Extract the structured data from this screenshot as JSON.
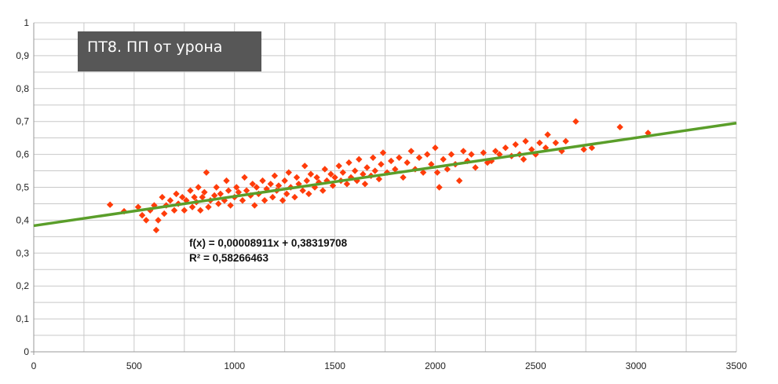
{
  "title": "ПТ8. ПП от урона",
  "chart_data": {
    "type": "scatter",
    "title": "ПТ8. ПП от урона",
    "xlabel": "",
    "ylabel": "",
    "xlim": [
      0,
      3500
    ],
    "ylim": [
      0,
      1
    ],
    "x_ticks": [
      "0",
      "500",
      "1000",
      "1500",
      "2000",
      "2500",
      "3000",
      "3500"
    ],
    "x_tick_values": [
      0,
      500,
      1000,
      1500,
      2000,
      2500,
      3000,
      3500
    ],
    "y_ticks": [
      "0",
      "0,1",
      "0,2",
      "0,3",
      "0,4",
      "0,5",
      "0,6",
      "0,7",
      "0,8",
      "0,9",
      "1"
    ],
    "y_tick_values": [
      0,
      0.1,
      0.2,
      0.3,
      0.4,
      0.5,
      0.6,
      0.7,
      0.8,
      0.9,
      1
    ],
    "grid": true,
    "point_color": "#ff3c0a",
    "trendline_color": "#5a9e2a",
    "trendline": {
      "slope": 8.911e-05,
      "intercept": 0.38319708,
      "equation": "f(x) = 0,00008911x + 0,38319708",
      "r_squared": "R² = 0,58266463"
    },
    "series": [
      {
        "marker": "diamond",
        "points": [
          [
            380,
            0.447
          ],
          [
            450,
            0.427
          ],
          [
            520,
            0.44
          ],
          [
            540,
            0.415
          ],
          [
            560,
            0.4
          ],
          [
            580,
            0.43
          ],
          [
            600,
            0.445
          ],
          [
            610,
            0.37
          ],
          [
            620,
            0.4
          ],
          [
            640,
            0.47
          ],
          [
            650,
            0.42
          ],
          [
            660,
            0.445
          ],
          [
            680,
            0.46
          ],
          [
            700,
            0.43
          ],
          [
            710,
            0.48
          ],
          [
            720,
            0.45
          ],
          [
            740,
            0.47
          ],
          [
            750,
            0.43
          ],
          [
            760,
            0.46
          ],
          [
            780,
            0.49
          ],
          [
            790,
            0.44
          ],
          [
            800,
            0.47
          ],
          [
            810,
            0.455
          ],
          [
            820,
            0.5
          ],
          [
            830,
            0.43
          ],
          [
            840,
            0.47
          ],
          [
            850,
            0.485
          ],
          [
            860,
            0.545
          ],
          [
            870,
            0.44
          ],
          [
            880,
            0.46
          ],
          [
            900,
            0.475
          ],
          [
            910,
            0.5
          ],
          [
            920,
            0.45
          ],
          [
            930,
            0.48
          ],
          [
            950,
            0.46
          ],
          [
            960,
            0.52
          ],
          [
            970,
            0.49
          ],
          [
            980,
            0.445
          ],
          [
            1000,
            0.47
          ],
          [
            1010,
            0.5
          ],
          [
            1020,
            0.485
          ],
          [
            1040,
            0.46
          ],
          [
            1050,
            0.53
          ],
          [
            1060,
            0.49
          ],
          [
            1080,
            0.475
          ],
          [
            1090,
            0.51
          ],
          [
            1100,
            0.445
          ],
          [
            1110,
            0.5
          ],
          [
            1120,
            0.48
          ],
          [
            1140,
            0.52
          ],
          [
            1150,
            0.46
          ],
          [
            1160,
            0.495
          ],
          [
            1180,
            0.51
          ],
          [
            1190,
            0.47
          ],
          [
            1200,
            0.535
          ],
          [
            1210,
            0.49
          ],
          [
            1220,
            0.505
          ],
          [
            1240,
            0.46
          ],
          [
            1250,
            0.52
          ],
          [
            1260,
            0.48
          ],
          [
            1270,
            0.545
          ],
          [
            1280,
            0.5
          ],
          [
            1300,
            0.47
          ],
          [
            1310,
            0.53
          ],
          [
            1320,
            0.51
          ],
          [
            1340,
            0.49
          ],
          [
            1350,
            0.565
          ],
          [
            1360,
            0.52
          ],
          [
            1370,
            0.48
          ],
          [
            1380,
            0.54
          ],
          [
            1400,
            0.5
          ],
          [
            1410,
            0.53
          ],
          [
            1420,
            0.515
          ],
          [
            1440,
            0.49
          ],
          [
            1450,
            0.555
          ],
          [
            1460,
            0.52
          ],
          [
            1480,
            0.54
          ],
          [
            1490,
            0.505
          ],
          [
            1500,
            0.53
          ],
          [
            1520,
            0.565
          ],
          [
            1530,
            0.52
          ],
          [
            1540,
            0.545
          ],
          [
            1560,
            0.51
          ],
          [
            1570,
            0.575
          ],
          [
            1580,
            0.53
          ],
          [
            1600,
            0.55
          ],
          [
            1610,
            0.52
          ],
          [
            1620,
            0.585
          ],
          [
            1640,
            0.54
          ],
          [
            1650,
            0.51
          ],
          [
            1660,
            0.56
          ],
          [
            1680,
            0.535
          ],
          [
            1690,
            0.59
          ],
          [
            1700,
            0.55
          ],
          [
            1720,
            0.525
          ],
          [
            1730,
            0.57
          ],
          [
            1740,
            0.605
          ],
          [
            1760,
            0.545
          ],
          [
            1780,
            0.58
          ],
          [
            1800,
            0.555
          ],
          [
            1820,
            0.59
          ],
          [
            1840,
            0.53
          ],
          [
            1860,
            0.575
          ],
          [
            1880,
            0.61
          ],
          [
            1900,
            0.555
          ],
          [
            1920,
            0.59
          ],
          [
            1940,
            0.545
          ],
          [
            1960,
            0.6
          ],
          [
            1980,
            0.57
          ],
          [
            2000,
            0.62
          ],
          [
            2010,
            0.545
          ],
          [
            2020,
            0.5
          ],
          [
            2040,
            0.585
          ],
          [
            2060,
            0.555
          ],
          [
            2080,
            0.6
          ],
          [
            2100,
            0.57
          ],
          [
            2120,
            0.52
          ],
          [
            2140,
            0.61
          ],
          [
            2160,
            0.58
          ],
          [
            2180,
            0.6
          ],
          [
            2200,
            0.56
          ],
          [
            2240,
            0.605
          ],
          [
            2260,
            0.575
          ],
          [
            2280,
            0.58
          ],
          [
            2300,
            0.61
          ],
          [
            2320,
            0.6
          ],
          [
            2350,
            0.62
          ],
          [
            2380,
            0.595
          ],
          [
            2400,
            0.63
          ],
          [
            2420,
            0.6
          ],
          [
            2440,
            0.585
          ],
          [
            2450,
            0.64
          ],
          [
            2480,
            0.615
          ],
          [
            2500,
            0.6
          ],
          [
            2520,
            0.635
          ],
          [
            2550,
            0.62
          ],
          [
            2560,
            0.66
          ],
          [
            2600,
            0.635
          ],
          [
            2630,
            0.61
          ],
          [
            2650,
            0.64
          ],
          [
            2700,
            0.7
          ],
          [
            2740,
            0.615
          ],
          [
            2780,
            0.62
          ],
          [
            2920,
            0.683
          ],
          [
            3060,
            0.665
          ]
        ]
      }
    ]
  }
}
